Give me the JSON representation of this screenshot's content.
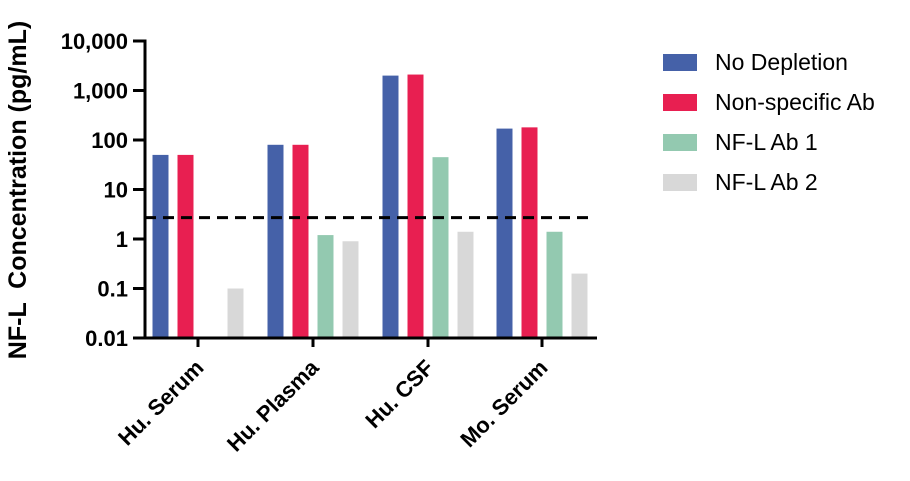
{
  "chart_data": {
    "type": "bar",
    "scale": "log",
    "title": "",
    "ylabel": "NF-L  Concentration (pg/mL)",
    "xlabel": "",
    "ylim": [
      0.01,
      10000
    ],
    "ytick_values": [
      10000,
      1000,
      100,
      10,
      1,
      0.1,
      0.01
    ],
    "ytick_labels": [
      "10,000",
      "1,000",
      "100",
      "10",
      "1",
      "0.1",
      "0.01"
    ],
    "categories": [
      "Hu. Serum",
      "Hu. Plasma",
      "Hu. CSF",
      "Mo. Serum"
    ],
    "series": [
      {
        "name": "No Depletion",
        "color": "#4561A8",
        "values": [
          50,
          80,
          2000,
          170
        ]
      },
      {
        "name": "Non-specific Ab",
        "color": "#E81F51",
        "values": [
          50,
          80,
          2100,
          180
        ]
      },
      {
        "name": "NF-L Ab 1",
        "color": "#93C9B0",
        "values": [
          null,
          1.2,
          45,
          1.4
        ]
      },
      {
        "name": "NF-L Ab 2",
        "color": "#D8D8D8",
        "values": [
          0.1,
          0.9,
          1.4,
          0.2
        ]
      }
    ],
    "threshold_line": {
      "value": 2.7,
      "style": "dashed",
      "color": "#000000"
    },
    "legend_position": "right",
    "grid": false,
    "axis_color": "#000000"
  }
}
